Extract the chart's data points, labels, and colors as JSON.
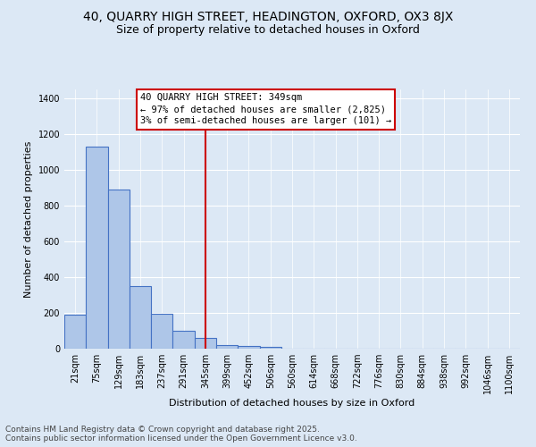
{
  "title_line1": "40, QUARRY HIGH STREET, HEADINGTON, OXFORD, OX3 8JX",
  "title_line2": "Size of property relative to detached houses in Oxford",
  "xlabel": "Distribution of detached houses by size in Oxford",
  "ylabel": "Number of detached properties",
  "categories": [
    "21sqm",
    "75sqm",
    "129sqm",
    "183sqm",
    "237sqm",
    "291sqm",
    "345sqm",
    "399sqm",
    "452sqm",
    "506sqm",
    "560sqm",
    "614sqm",
    "668sqm",
    "722sqm",
    "776sqm",
    "830sqm",
    "884sqm",
    "938sqm",
    "992sqm",
    "1046sqm",
    "1100sqm"
  ],
  "values": [
    190,
    1130,
    890,
    350,
    195,
    100,
    60,
    20,
    15,
    10,
    0,
    0,
    0,
    0,
    0,
    0,
    0,
    0,
    0,
    0,
    0
  ],
  "bar_color": "#aec6e8",
  "bar_edge_color": "#4472c4",
  "vline_x_index": 6,
  "vline_color": "#cc0000",
  "annotation_text": "40 QUARRY HIGH STREET: 349sqm\n← 97% of detached houses are smaller (2,825)\n3% of semi-detached houses are larger (101) →",
  "annotation_box_color": "#ffffff",
  "annotation_box_edge_color": "#cc0000",
  "ylim": [
    0,
    1450
  ],
  "yticks": [
    0,
    200,
    400,
    600,
    800,
    1000,
    1200,
    1400
  ],
  "background_color": "#dce8f5",
  "footer_line1": "Contains HM Land Registry data © Crown copyright and database right 2025.",
  "footer_line2": "Contains public sector information licensed under the Open Government Licence v3.0.",
  "title_fontsize": 10,
  "subtitle_fontsize": 9,
  "axis_label_fontsize": 8,
  "tick_fontsize": 7,
  "annotation_fontsize": 7.5,
  "footer_fontsize": 6.5
}
